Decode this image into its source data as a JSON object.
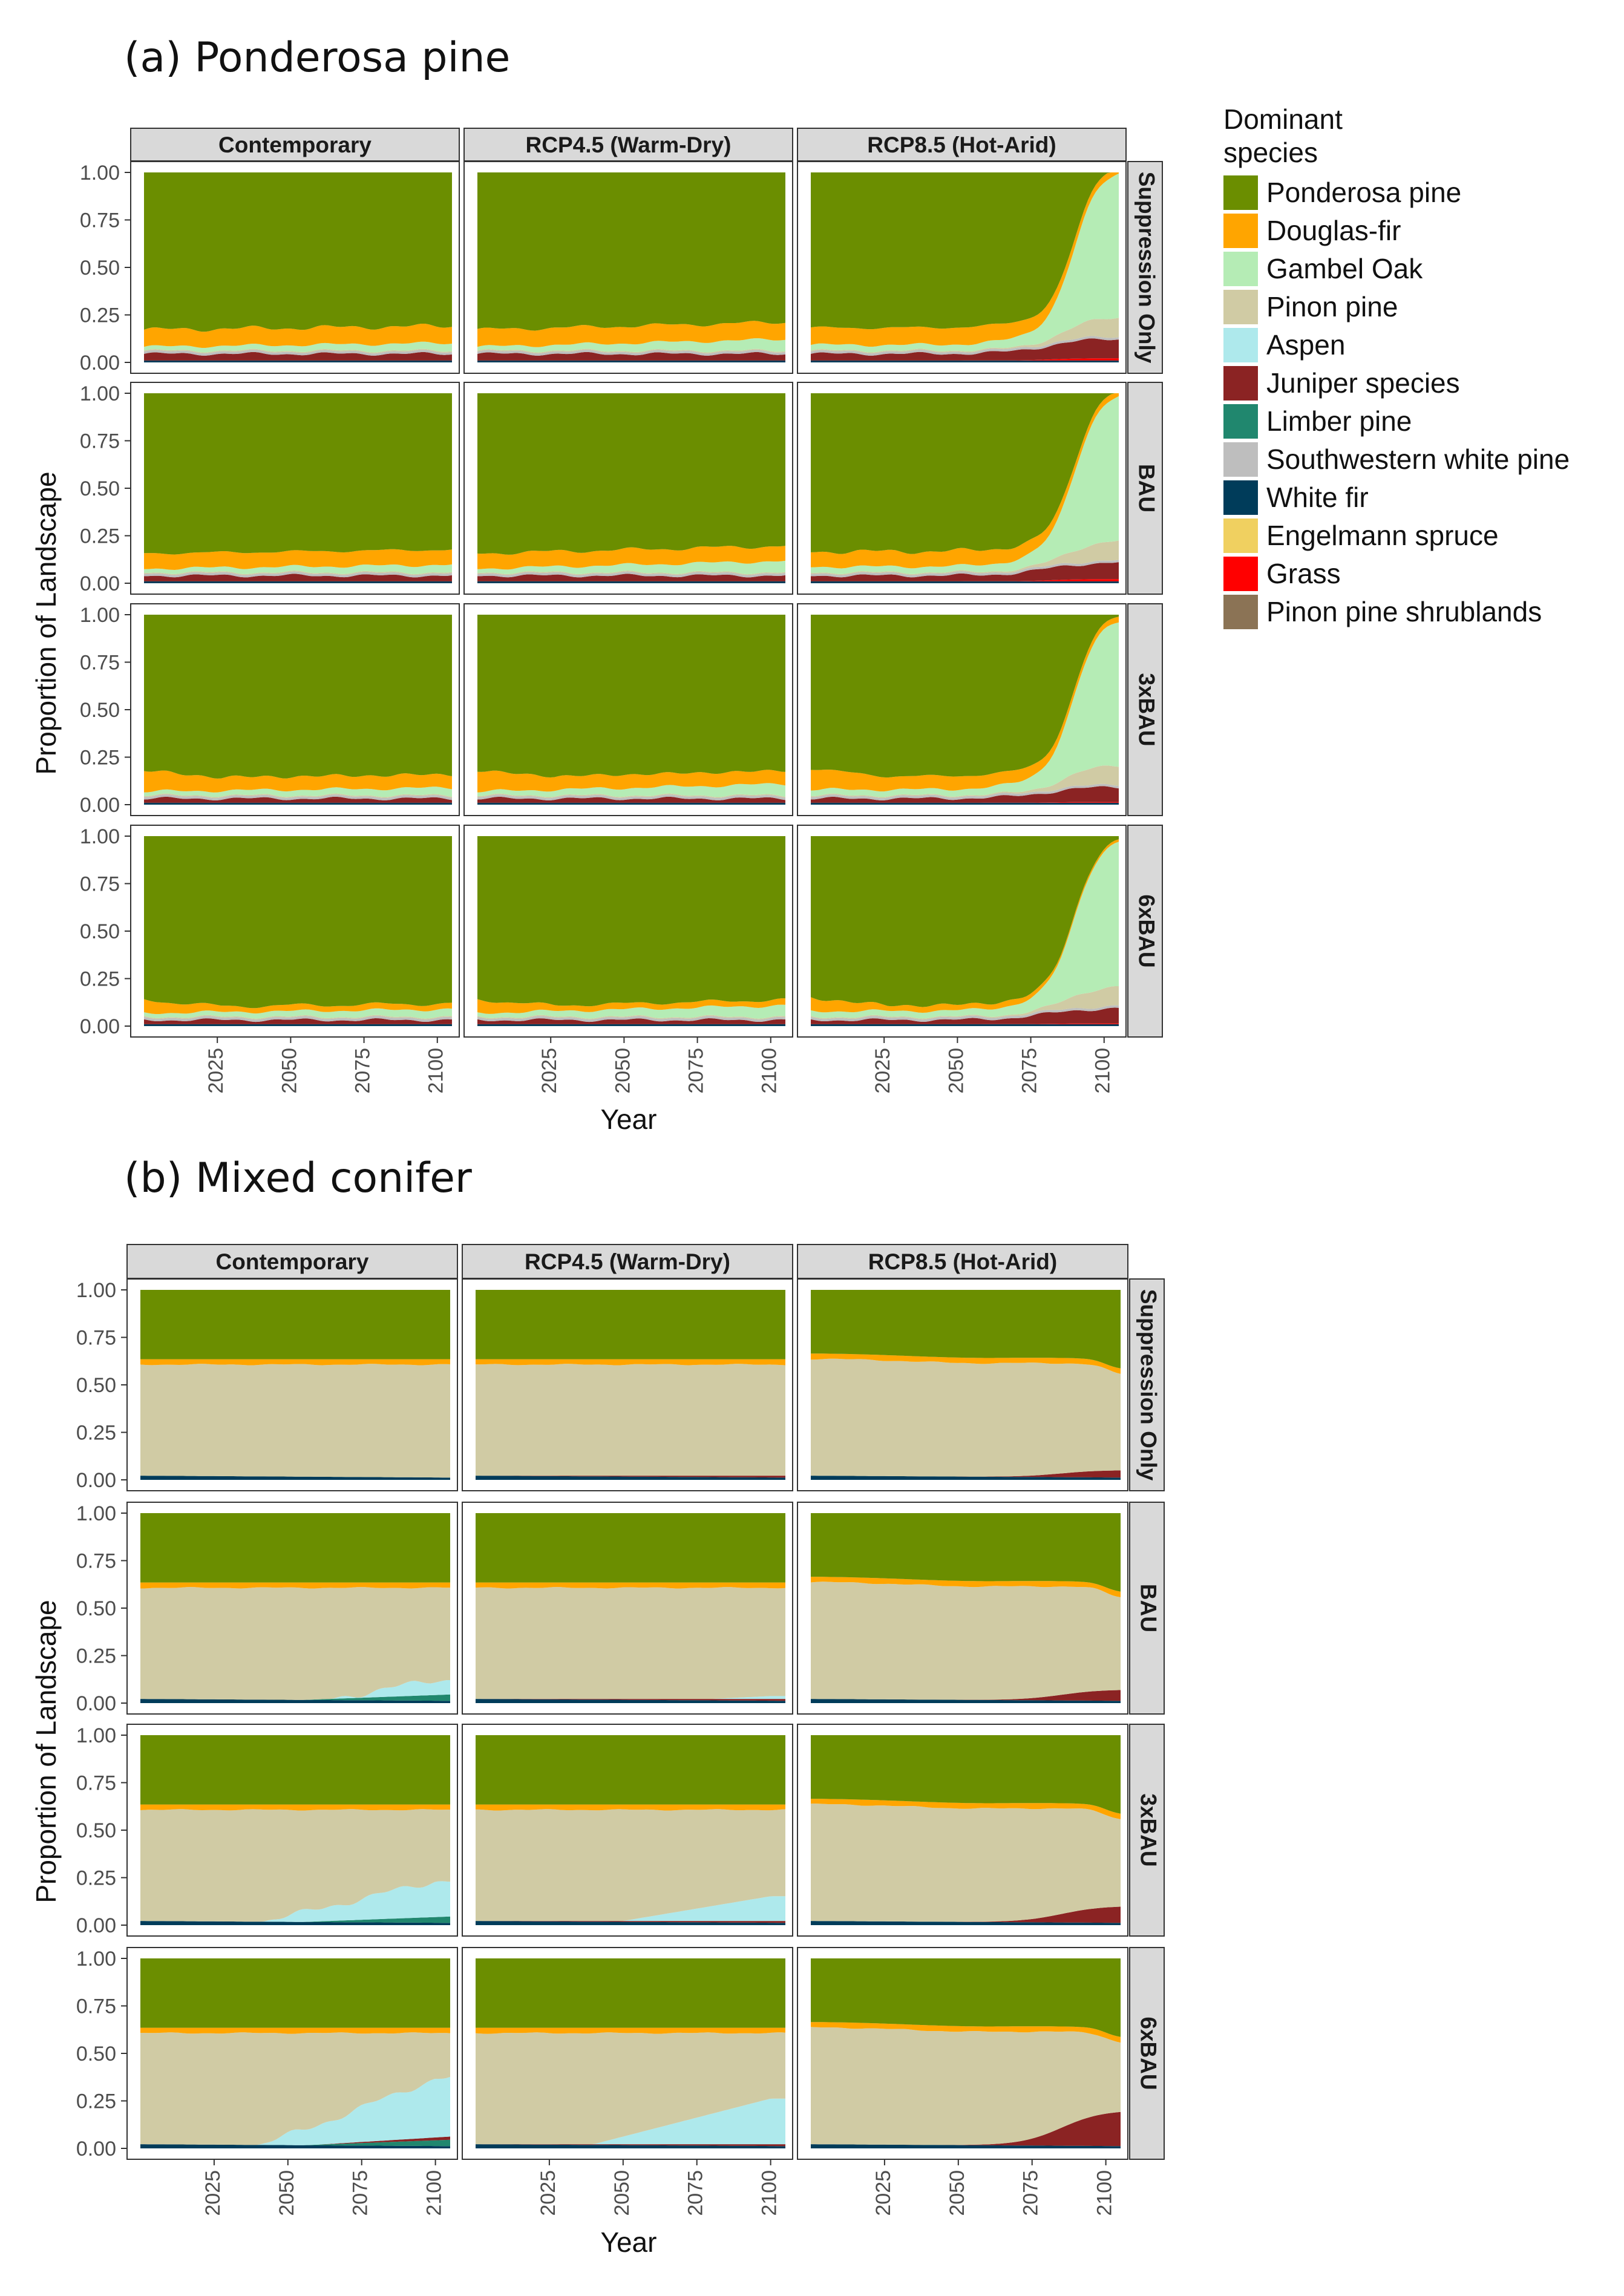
{
  "legend": {
    "title_line1": "Dominant",
    "title_line2": "species",
    "entries": [
      {
        "label": "Ponderosa pine",
        "color": "#6b8e00"
      },
      {
        "label": "Douglas-fir",
        "color": "#ffa500"
      },
      {
        "label": "Gambel Oak",
        "color": "#b5ecb5"
      },
      {
        "label": "Pinon pine",
        "color": "#d0cba4"
      },
      {
        "label": "Aspen",
        "color": "#aee9ec"
      },
      {
        "label": "Juniper species",
        "color": "#8b2323"
      },
      {
        "label": "Limber pine",
        "color": "#20876e"
      },
      {
        "label": "Southwestern white pine",
        "color": "#bebebe"
      },
      {
        "label": "White fir",
        "color": "#003c5a"
      },
      {
        "label": "Engelmann spruce",
        "color": "#f0d060"
      },
      {
        "label": "Grass",
        "color": "#ff0000"
      },
      {
        "label": "Pinon pine shrublands",
        "color": "#8b7355"
      }
    ]
  },
  "chart_data": [
    {
      "type": "area",
      "panel_label": "(a) Ponderosa pine",
      "xlabel": "Year",
      "ylabel": "Proportion of Landscape",
      "x_ticks": [
        "2025",
        "2050",
        "2075",
        "2100"
      ],
      "y_ticks": [
        "0.00",
        "0.25",
        "0.50",
        "0.75",
        "1.00"
      ],
      "xlim": [
        2000,
        2105
      ],
      "ylim": [
        0,
        1
      ],
      "column_facets": [
        "Contemporary",
        "RCP4.5 (Warm-Dry)",
        "RCP8.5 (Hot-Arid)"
      ],
      "row_facets": [
        "Suppression Only",
        "BAU",
        "3xBAU",
        "6xBAU"
      ],
      "approx_shares_at_2005": {
        "Ponderosa pine": 0.8,
        "Douglas-fir": 0.1,
        "Gambel Oak": 0.02,
        "Juniper species": 0.04
      },
      "rcp85_shares_at_2100": {
        "Ponderosa pine": 0.0,
        "Gambel Oak": 0.75,
        "Pinon pine": 0.08,
        "Juniper species": 0.1
      }
    },
    {
      "type": "area",
      "panel_label": "(b) Mixed conifer",
      "xlabel": "Year",
      "ylabel": "Proportion of Landscape",
      "x_ticks": [
        "2025",
        "2050",
        "2075",
        "2100"
      ],
      "y_ticks": [
        "0.00",
        "0.25",
        "0.50",
        "0.75",
        "1.00"
      ],
      "xlim": [
        2000,
        2105
      ],
      "ylim": [
        0,
        1
      ],
      "column_facets": [
        "Contemporary",
        "RCP4.5 (Warm-Dry)",
        "RCP8.5 (Hot-Arid)"
      ],
      "row_facets": [
        "Suppression Only",
        "BAU",
        "3xBAU",
        "6xBAU"
      ],
      "approx_shares_at_2005": {
        "Ponderosa pine": 0.37,
        "Douglas-fir": 0.03,
        "Pinon pine": 0.58,
        "White fir": 0.02
      },
      "contemporary_aspen_at_2100": {
        "Suppression Only": 0.0,
        "BAU": 0.1,
        "3xBAU": 0.2,
        "6xBAU": 0.32
      }
    }
  ]
}
